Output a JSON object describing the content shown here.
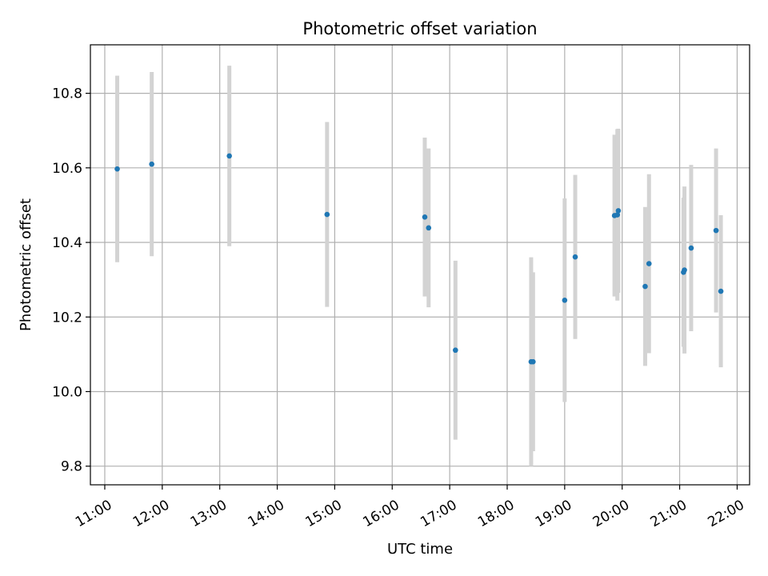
{
  "chart_data": {
    "type": "scatter",
    "title": "Photometric offset variation",
    "xlabel": "UTC time",
    "ylabel": "Photometric offset",
    "x_ticks": [
      "11:00",
      "12:00",
      "13:00",
      "14:00",
      "15:00",
      "16:00",
      "17:00",
      "18:00",
      "19:00",
      "20:00",
      "21:00",
      "22:00"
    ],
    "y_ticks": [
      9.8,
      10.0,
      10.2,
      10.4,
      10.6,
      10.8
    ],
    "xlim": [
      "10:45",
      "22:13"
    ],
    "ylim": [
      9.75,
      10.93
    ],
    "grid": true,
    "marker_color": "#1f77b4",
    "errorbar_color": "#d3d3d3",
    "points": [
      {
        "x": "11:13",
        "y": 10.597,
        "err": 0.25
      },
      {
        "x": "11:49",
        "y": 10.61,
        "err": 0.247
      },
      {
        "x": "13:10",
        "y": 10.632,
        "err": 0.242
      },
      {
        "x": "14:52",
        "y": 10.475,
        "err": 0.248
      },
      {
        "x": "16:34",
        "y": 10.468,
        "err": 0.213
      },
      {
        "x": "16:38",
        "y": 10.439,
        "err": 0.213
      },
      {
        "x": "17:06",
        "y": 10.111,
        "err": 0.24
      },
      {
        "x": "18:25",
        "y": 10.08,
        "err": 0.28
      },
      {
        "x": "18:27",
        "y": 10.08,
        "err": 0.24
      },
      {
        "x": "19:00",
        "y": 10.245,
        "err": 0.273
      },
      {
        "x": "19:11",
        "y": 10.361,
        "err": 0.22
      },
      {
        "x": "19:52",
        "y": 10.472,
        "err": 0.217
      },
      {
        "x": "19:55",
        "y": 10.474,
        "err": 0.23
      },
      {
        "x": "19:56",
        "y": 10.485,
        "err": 0.22
      },
      {
        "x": "20:24",
        "y": 10.282,
        "err": 0.213
      },
      {
        "x": "20:28",
        "y": 10.343,
        "err": 0.24
      },
      {
        "x": "21:04",
        "y": 10.32,
        "err": 0.2
      },
      {
        "x": "21:05",
        "y": 10.326,
        "err": 0.224
      },
      {
        "x": "21:12",
        "y": 10.385,
        "err": 0.223
      },
      {
        "x": "21:38",
        "y": 10.432,
        "err": 0.22
      },
      {
        "x": "21:43",
        "y": 10.269,
        "err": 0.204
      }
    ]
  }
}
